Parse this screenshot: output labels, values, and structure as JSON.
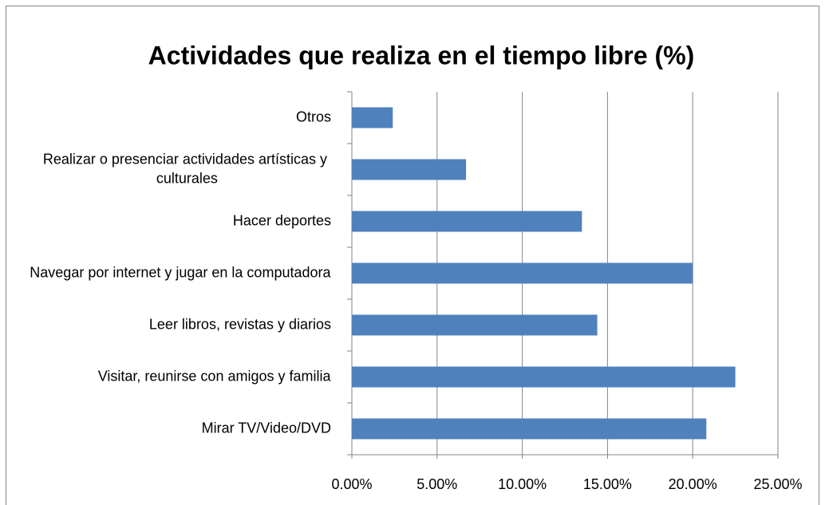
{
  "chart_data": {
    "type": "bar",
    "orientation": "horizontal",
    "title": "Actividades que realiza en el tiempo libre (%)",
    "categories": [
      "Mirar TV/Video/DVD",
      "Visitar,  reunirse con amigos  y familia",
      "Leer libros, revistas y diarios",
      "Navegar por internet y jugar en la computadora",
      "Hacer deportes",
      "Realizar o presenciar actividades artísticas y culturales",
      "Otros"
    ],
    "values": [
      20.8,
      22.5,
      14.4,
      20.0,
      13.5,
      6.7,
      2.4
    ],
    "color": "#4f81bd",
    "xlim": [
      0,
      25
    ],
    "xticks": [
      {
        "value": 0,
        "label": "0.00%"
      },
      {
        "value": 5,
        "label": "5.00%"
      },
      {
        "value": 10,
        "label": "10.00%"
      },
      {
        "value": 15,
        "label": "15.00%"
      },
      {
        "value": 20,
        "label": "20.00%"
      },
      {
        "value": 25,
        "label": "25.00%"
      }
    ],
    "grid": true
  }
}
